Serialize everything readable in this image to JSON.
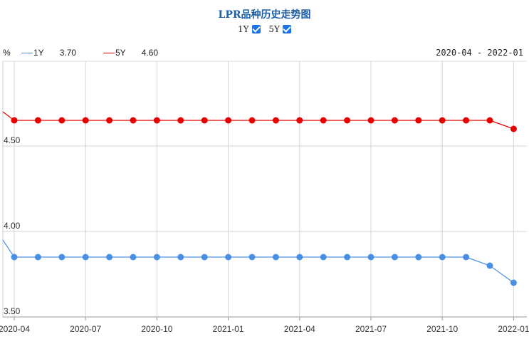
{
  "title": "LPR品种历史走势图",
  "toggles": [
    {
      "label": "1Y",
      "checked": true
    },
    {
      "label": "5Y",
      "checked": true
    }
  ],
  "unit": "%",
  "legend": [
    {
      "name": "1Y",
      "value": "3.70",
      "color": "#4a90e2"
    },
    {
      "name": "5Y",
      "value": "4.60",
      "color": "#e60000"
    }
  ],
  "date_range": "2020-04 - 2022-01",
  "chart_data": {
    "type": "line",
    "x": [
      "2020-04",
      "2020-05",
      "2020-06",
      "2020-07",
      "2020-08",
      "2020-09",
      "2020-10",
      "2020-11",
      "2020-12",
      "2021-01",
      "2021-02",
      "2021-03",
      "2021-04",
      "2021-05",
      "2021-06",
      "2021-07",
      "2021-08",
      "2021-09",
      "2021-10",
      "2021-11",
      "2021-12",
      "2022-01"
    ],
    "x_tick_labels": [
      "2020-04",
      "2020-07",
      "2020-10",
      "2021-01",
      "2021-04",
      "2021-07",
      "2021-10",
      "2022-01"
    ],
    "y_tick_labels": [
      "3.50",
      "4.00",
      "4.50"
    ],
    "ylim": [
      3.5,
      5.0
    ],
    "grid": true,
    "series": [
      {
        "name": "1Y",
        "color": "#4a90e2",
        "prev": 3.95,
        "values": [
          3.85,
          3.85,
          3.85,
          3.85,
          3.85,
          3.85,
          3.85,
          3.85,
          3.85,
          3.85,
          3.85,
          3.85,
          3.85,
          3.85,
          3.85,
          3.85,
          3.85,
          3.85,
          3.85,
          3.85,
          3.8,
          3.7
        ]
      },
      {
        "name": "5Y",
        "color": "#e60000",
        "prev": 4.7,
        "values": [
          4.65,
          4.65,
          4.65,
          4.65,
          4.65,
          4.65,
          4.65,
          4.65,
          4.65,
          4.65,
          4.65,
          4.65,
          4.65,
          4.65,
          4.65,
          4.65,
          4.65,
          4.65,
          4.65,
          4.65,
          4.65,
          4.6
        ]
      }
    ]
  }
}
